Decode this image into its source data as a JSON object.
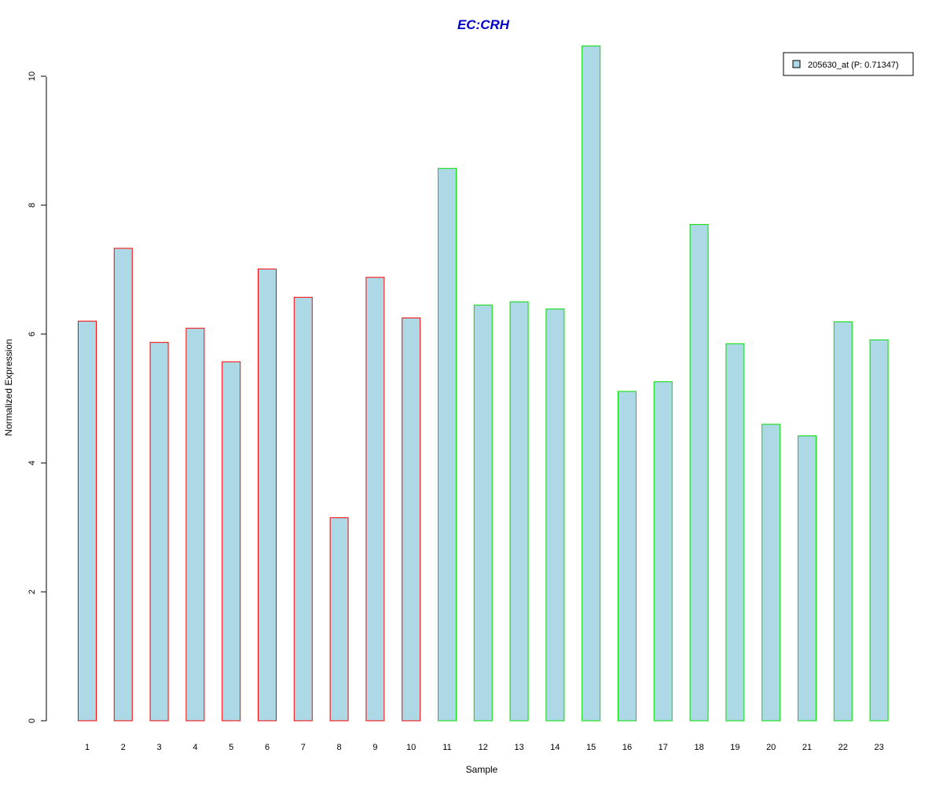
{
  "chart_data": {
    "type": "bar",
    "title": "EC:CRH",
    "xlabel": "Sample",
    "ylabel": "Normalized Expression",
    "categories": [
      "1",
      "2",
      "3",
      "4",
      "5",
      "6",
      "7",
      "8",
      "9",
      "10",
      "11",
      "12",
      "13",
      "14",
      "15",
      "16",
      "17",
      "18",
      "19",
      "20",
      "21",
      "22",
      "23"
    ],
    "series": [
      {
        "name": "205630_at (P: 0.71347)",
        "values": [
          6.2,
          7.33,
          5.87,
          6.09,
          5.57,
          7.01,
          6.57,
          3.15,
          6.88,
          6.25,
          8.57,
          6.45,
          6.5,
          6.39,
          10.47,
          5.11,
          5.26,
          7.7,
          5.85,
          4.6,
          4.42,
          6.19,
          5.91
        ]
      }
    ],
    "bar_outline_colors": [
      "#ff0000",
      "#ff0000",
      "#ff0000",
      "#ff0000",
      "#ff0000",
      "#ff0000",
      "#ff0000",
      "#ff0000",
      "#ff0000",
      "#ff0000",
      "#00dd00",
      "#00dd00",
      "#00dd00",
      "#00dd00",
      "#00dd00",
      "#00dd00",
      "#00dd00",
      "#00dd00",
      "#00dd00",
      "#00dd00",
      "#00dd00",
      "#00dd00",
      "#00dd00"
    ],
    "bar_fill": "#add8e6",
    "title_color": "#0000cc",
    "yticks": [
      0,
      2,
      4,
      6,
      8,
      10
    ],
    "ylim": [
      0,
      10.5
    ],
    "grid": false,
    "legend_position": "top-right"
  }
}
